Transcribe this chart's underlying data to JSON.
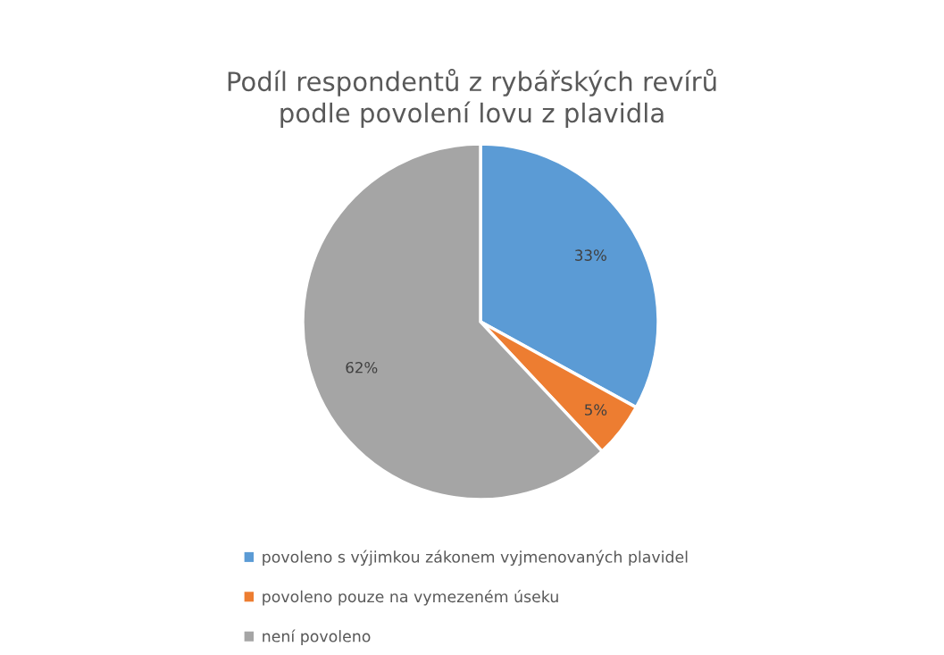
{
  "chart_data": {
    "type": "pie",
    "title": "Podíl respondentů z rybářských revírů\npodle povolení lovu z plavidla",
    "categories": [
      "povoleno s výjimkou zákonem vyjmenovaných plavidel",
      "povoleno pouze na vymezeném úseku",
      "není povoleno"
    ],
    "values": [
      33,
      5,
      62
    ],
    "colors": [
      "#5b9bd5",
      "#ed7d31",
      "#a5a5a5"
    ],
    "value_labels": [
      "33%",
      "5%",
      "62%"
    ],
    "legend": "bottom"
  }
}
